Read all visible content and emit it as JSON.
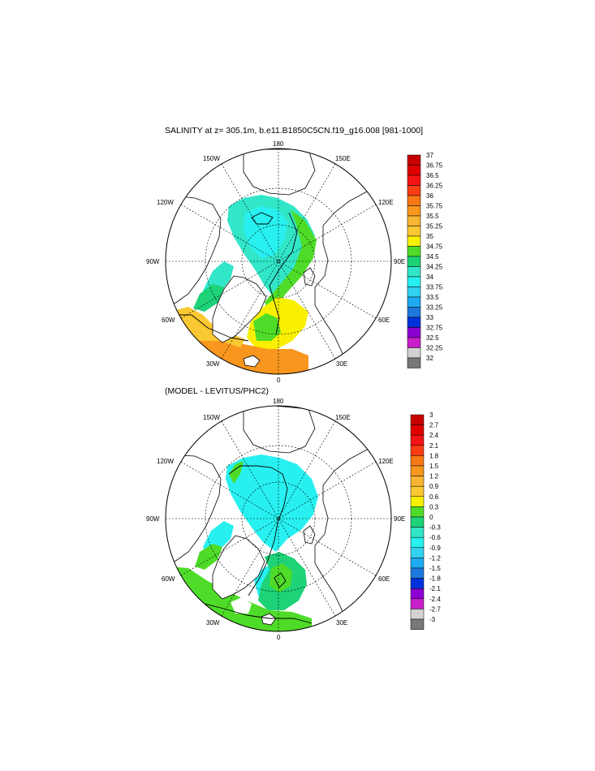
{
  "panels": [
    {
      "title": "SALINITY at z= 305.1m, b.e11.B1850C5CN.f19_g16.008 [981-1000]",
      "colorbar_labels": [
        "37",
        "36.75",
        "36.5",
        "36.25",
        "36",
        "35.75",
        "35.5",
        "35.25",
        "35",
        "34.75",
        "34.5",
        "34.25",
        "34",
        "33.75",
        "33.5",
        "33.25",
        "33",
        "32.75",
        "32.5",
        "32.25",
        "32"
      ],
      "colorbar_colors": [
        "#c80000",
        "#e00000",
        "#f41414",
        "#f83c14",
        "#f87814",
        "#f8961e",
        "#f8b432",
        "#fac832",
        "#f8f000",
        "#4fdc28",
        "#1ed278",
        "#32e6c8",
        "#28f0f0",
        "#32d2f0",
        "#1eaaf0",
        "#1e78dc",
        "#0032dc",
        "#8c00d2",
        "#c81ec8",
        "#d2d2d2",
        "#787878"
      ]
    },
    {
      "title": "(MODEL - LEVITUS/PHC2)",
      "colorbar_labels": [
        "3",
        "2.7",
        "2.4",
        "2.1",
        "1.8",
        "1.5",
        "1.2",
        "0.9",
        "0.6",
        "0.3",
        "0",
        "-0.3",
        "-0.6",
        "-0.9",
        "-1.2",
        "-1.5",
        "-1.8",
        "-2.1",
        "-2.4",
        "-2.7",
        "-3"
      ],
      "colorbar_colors": [
        "#c80000",
        "#e00000",
        "#f41414",
        "#f83c14",
        "#f87814",
        "#f8961e",
        "#f8b432",
        "#fac832",
        "#f8f000",
        "#4fdc28",
        "#1ed278",
        "#32e6c8",
        "#28f0f0",
        "#32d2f0",
        "#1eaaf0",
        "#1e78dc",
        "#0032dc",
        "#8c00d2",
        "#c81ec8",
        "#d2d2d2",
        "#787878"
      ]
    }
  ],
  "lon_labels": [
    "180",
    "150W",
    "120W",
    "90W",
    "60W",
    "30W",
    "0",
    "30E",
    "60E",
    "90E",
    "120E",
    "150E"
  ]
}
